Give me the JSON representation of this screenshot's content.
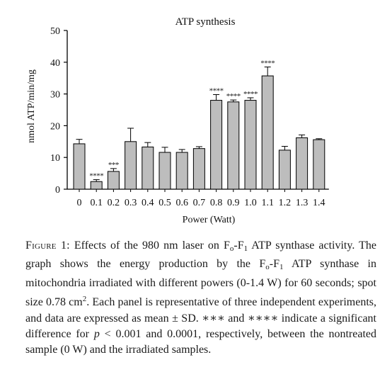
{
  "chart_data": {
    "type": "bar",
    "title": "ATP synthesis",
    "ylabel": "nmol ATP/min/mg",
    "xlabel": "Power (Watt)",
    "ylim": [
      0,
      50
    ],
    "yticks": [
      "0",
      "10",
      "20",
      "30",
      "40",
      "50"
    ],
    "categories": [
      "0",
      "0.1",
      "0.2",
      "0.3",
      "0.4",
      "0.5",
      "0.6",
      "0.7",
      "0.8",
      "0.9",
      "1.0",
      "1.1",
      "1.2",
      "1.3",
      "1.4"
    ],
    "values": [
      14.3,
      2.4,
      5.6,
      15.0,
      13.3,
      11.6,
      11.6,
      12.8,
      28.0,
      27.5,
      28.0,
      35.7,
      12.3,
      16.2,
      15.6
    ],
    "errors": [
      1.4,
      0.6,
      0.9,
      4.2,
      1.4,
      1.6,
      0.9,
      0.6,
      1.8,
      0.6,
      0.8,
      2.8,
      1.2,
      0.9,
      0.3
    ],
    "significance": [
      "",
      "****",
      "***",
      "",
      "",
      "",
      "",
      "",
      "****",
      "****",
      "****",
      "****",
      "",
      "",
      ""
    ],
    "bar_color": "#bdbdbd",
    "grid": false,
    "legend": "none"
  },
  "caption": {
    "figure_label": "Figure 1:",
    "line1_a": "Effects of the 980 nm laser on F",
    "sub_o_1": "o",
    "line1_b": "-F",
    "sub_1_1": "1",
    "line1_c": " ATP synthase activity. The graph shows the energy production by the F",
    "sub_o_2": "o",
    "line2_b": "-F",
    "sub_1_2": "1",
    "line2_c": " ATP synthase in mitochondria irradiated with different powers (0-1.4 W) for 60 seconds; spot size 0.78 cm",
    "sup_2": "2",
    "line3_c": ". Each panel is representative of three independent experiments, and data are expressed as mean ± SD. ∗∗∗ and ∗∗∗∗ indicate a significant difference for ",
    "p_italic": "p",
    "line4_c": " < 0.001 and 0.0001, respectively, between the nontreated sample (0 W) and the irradiated samples."
  }
}
